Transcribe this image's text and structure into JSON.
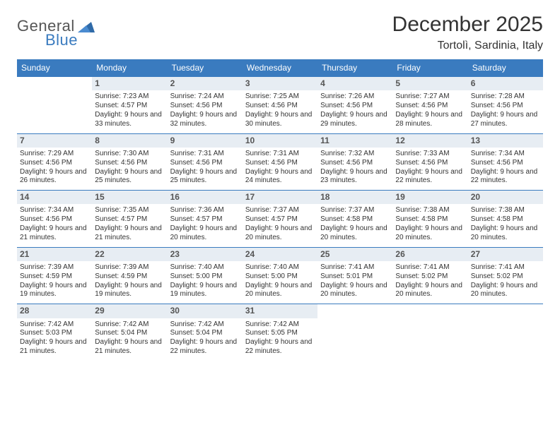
{
  "brand": {
    "general": "General",
    "blue": "Blue"
  },
  "title": "December 2025",
  "location": "Tortolì, Sardinia, Italy",
  "colors": {
    "header_bg": "#3a7bbf",
    "header_fg": "#ffffff",
    "daynum_bg": "#e7edf3",
    "border": "#3a7bbf",
    "text": "#333333"
  },
  "days_of_week": [
    "Sunday",
    "Monday",
    "Tuesday",
    "Wednesday",
    "Thursday",
    "Friday",
    "Saturday"
  ],
  "weeks": [
    [
      null,
      {
        "n": "1",
        "sunrise": "7:23 AM",
        "sunset": "4:57 PM",
        "daylight": "9 hours and 33 minutes."
      },
      {
        "n": "2",
        "sunrise": "7:24 AM",
        "sunset": "4:56 PM",
        "daylight": "9 hours and 32 minutes."
      },
      {
        "n": "3",
        "sunrise": "7:25 AM",
        "sunset": "4:56 PM",
        "daylight": "9 hours and 30 minutes."
      },
      {
        "n": "4",
        "sunrise": "7:26 AM",
        "sunset": "4:56 PM",
        "daylight": "9 hours and 29 minutes."
      },
      {
        "n": "5",
        "sunrise": "7:27 AM",
        "sunset": "4:56 PM",
        "daylight": "9 hours and 28 minutes."
      },
      {
        "n": "6",
        "sunrise": "7:28 AM",
        "sunset": "4:56 PM",
        "daylight": "9 hours and 27 minutes."
      }
    ],
    [
      {
        "n": "7",
        "sunrise": "7:29 AM",
        "sunset": "4:56 PM",
        "daylight": "9 hours and 26 minutes."
      },
      {
        "n": "8",
        "sunrise": "7:30 AM",
        "sunset": "4:56 PM",
        "daylight": "9 hours and 25 minutes."
      },
      {
        "n": "9",
        "sunrise": "7:31 AM",
        "sunset": "4:56 PM",
        "daylight": "9 hours and 25 minutes."
      },
      {
        "n": "10",
        "sunrise": "7:31 AM",
        "sunset": "4:56 PM",
        "daylight": "9 hours and 24 minutes."
      },
      {
        "n": "11",
        "sunrise": "7:32 AM",
        "sunset": "4:56 PM",
        "daylight": "9 hours and 23 minutes."
      },
      {
        "n": "12",
        "sunrise": "7:33 AM",
        "sunset": "4:56 PM",
        "daylight": "9 hours and 22 minutes."
      },
      {
        "n": "13",
        "sunrise": "7:34 AM",
        "sunset": "4:56 PM",
        "daylight": "9 hours and 22 minutes."
      }
    ],
    [
      {
        "n": "14",
        "sunrise": "7:34 AM",
        "sunset": "4:56 PM",
        "daylight": "9 hours and 21 minutes."
      },
      {
        "n": "15",
        "sunrise": "7:35 AM",
        "sunset": "4:57 PM",
        "daylight": "9 hours and 21 minutes."
      },
      {
        "n": "16",
        "sunrise": "7:36 AM",
        "sunset": "4:57 PM",
        "daylight": "9 hours and 20 minutes."
      },
      {
        "n": "17",
        "sunrise": "7:37 AM",
        "sunset": "4:57 PM",
        "daylight": "9 hours and 20 minutes."
      },
      {
        "n": "18",
        "sunrise": "7:37 AM",
        "sunset": "4:58 PM",
        "daylight": "9 hours and 20 minutes."
      },
      {
        "n": "19",
        "sunrise": "7:38 AM",
        "sunset": "4:58 PM",
        "daylight": "9 hours and 20 minutes."
      },
      {
        "n": "20",
        "sunrise": "7:38 AM",
        "sunset": "4:58 PM",
        "daylight": "9 hours and 20 minutes."
      }
    ],
    [
      {
        "n": "21",
        "sunrise": "7:39 AM",
        "sunset": "4:59 PM",
        "daylight": "9 hours and 19 minutes."
      },
      {
        "n": "22",
        "sunrise": "7:39 AM",
        "sunset": "4:59 PM",
        "daylight": "9 hours and 19 minutes."
      },
      {
        "n": "23",
        "sunrise": "7:40 AM",
        "sunset": "5:00 PM",
        "daylight": "9 hours and 19 minutes."
      },
      {
        "n": "24",
        "sunrise": "7:40 AM",
        "sunset": "5:00 PM",
        "daylight": "9 hours and 20 minutes."
      },
      {
        "n": "25",
        "sunrise": "7:41 AM",
        "sunset": "5:01 PM",
        "daylight": "9 hours and 20 minutes."
      },
      {
        "n": "26",
        "sunrise": "7:41 AM",
        "sunset": "5:02 PM",
        "daylight": "9 hours and 20 minutes."
      },
      {
        "n": "27",
        "sunrise": "7:41 AM",
        "sunset": "5:02 PM",
        "daylight": "9 hours and 20 minutes."
      }
    ],
    [
      {
        "n": "28",
        "sunrise": "7:42 AM",
        "sunset": "5:03 PM",
        "daylight": "9 hours and 21 minutes."
      },
      {
        "n": "29",
        "sunrise": "7:42 AM",
        "sunset": "5:04 PM",
        "daylight": "9 hours and 21 minutes."
      },
      {
        "n": "30",
        "sunrise": "7:42 AM",
        "sunset": "5:04 PM",
        "daylight": "9 hours and 22 minutes."
      },
      {
        "n": "31",
        "sunrise": "7:42 AM",
        "sunset": "5:05 PM",
        "daylight": "9 hours and 22 minutes."
      },
      null,
      null,
      null
    ]
  ],
  "labels": {
    "sunrise": "Sunrise:",
    "sunset": "Sunset:",
    "daylight": "Daylight:"
  }
}
